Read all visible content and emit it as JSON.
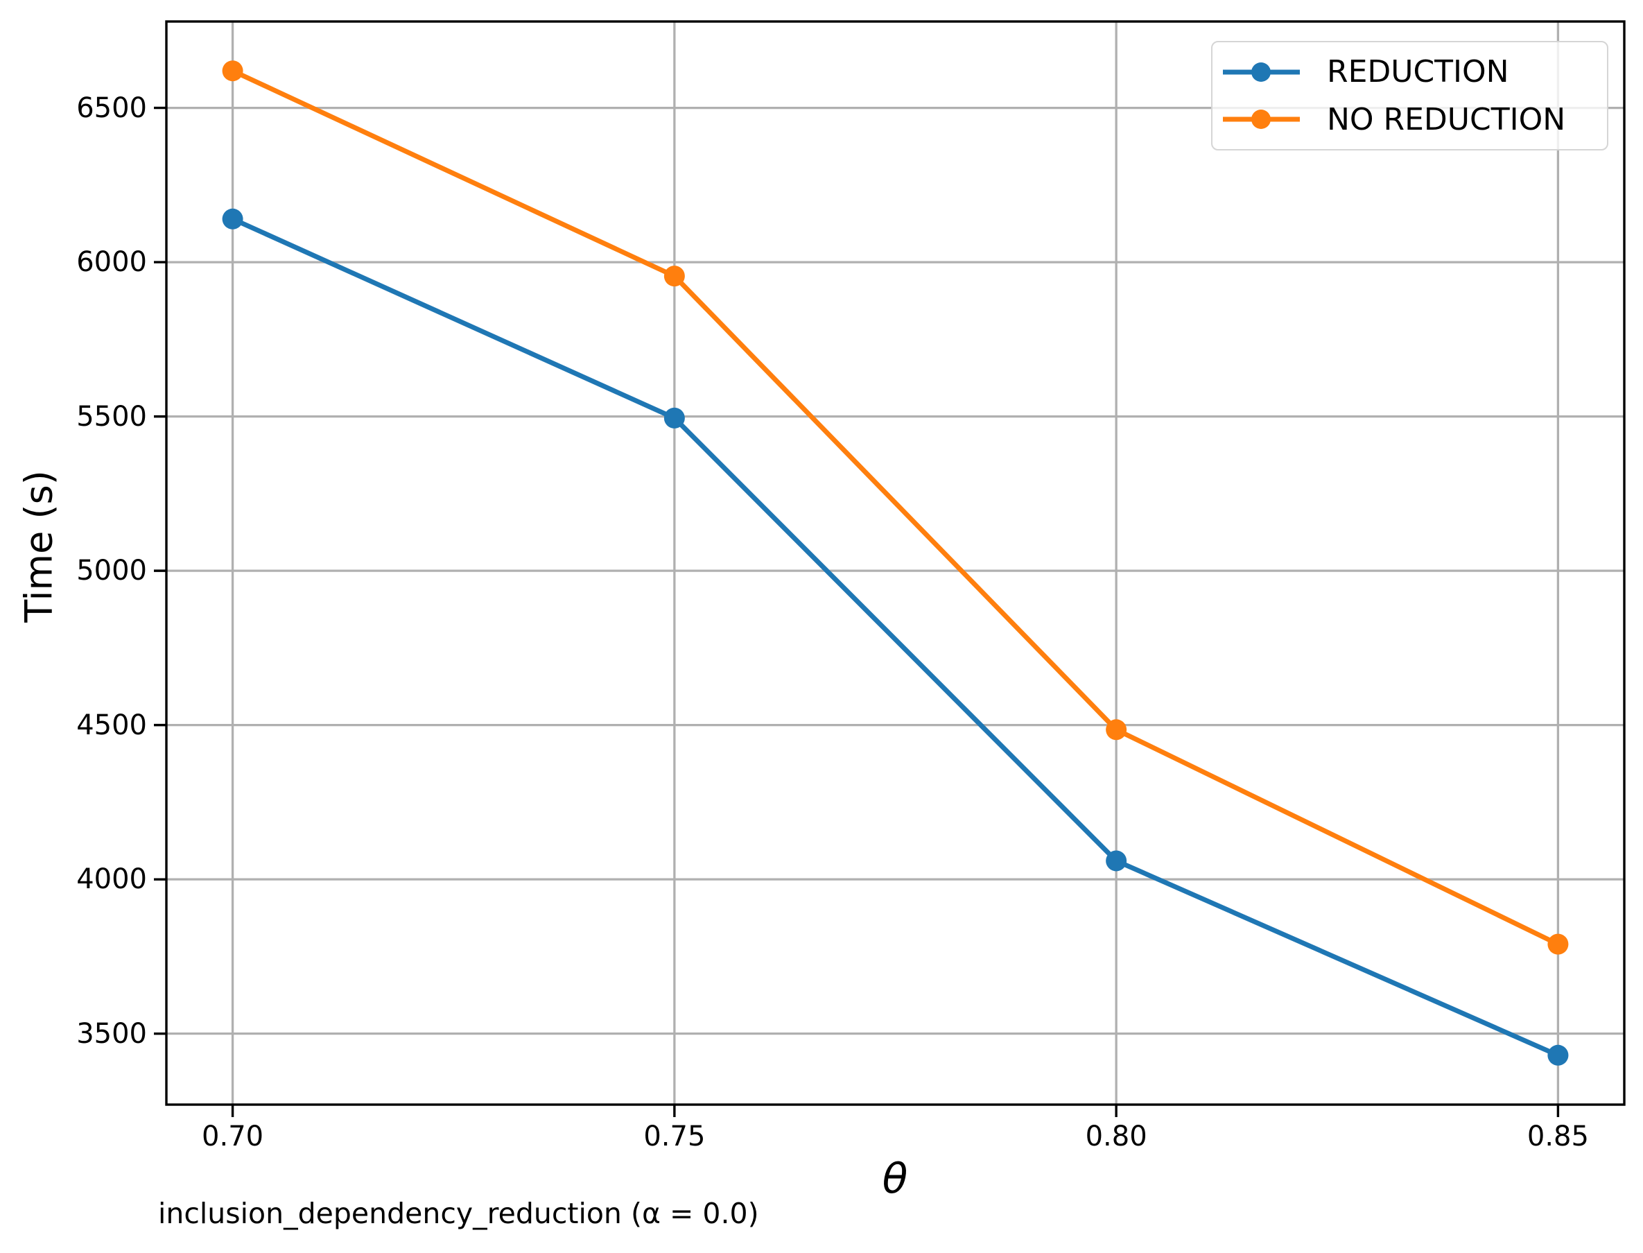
{
  "figure": {
    "background": "#ffffff",
    "caption": "inclusion_dependency_reduction (α = 0.0)"
  },
  "chart_data": {
    "type": "line",
    "title": "",
    "xlabel": "θ",
    "ylabel": "Time (s)",
    "x": [
      0.7,
      0.75,
      0.8,
      0.85
    ],
    "x_tick_labels": [
      "0.70",
      "0.75",
      "0.80",
      "0.85"
    ],
    "y_ticks": [
      3500,
      4000,
      4500,
      5000,
      5500,
      6000,
      6500
    ],
    "xlim": [
      0.6925,
      0.8575
    ],
    "ylim": [
      3270,
      6780
    ],
    "grid": true,
    "grid_color": "#b0b0b0",
    "series": [
      {
        "name": "REDUCTION",
        "color": "#1f77b4",
        "values": [
          6140,
          5495,
          4060,
          3430
        ]
      },
      {
        "name": "NO REDUCTION",
        "color": "#ff7f0e",
        "values": [
          6620,
          5955,
          4485,
          3790
        ]
      }
    ],
    "legend": {
      "position": "upper right",
      "entries": [
        "REDUCTION",
        "NO REDUCTION"
      ]
    }
  }
}
